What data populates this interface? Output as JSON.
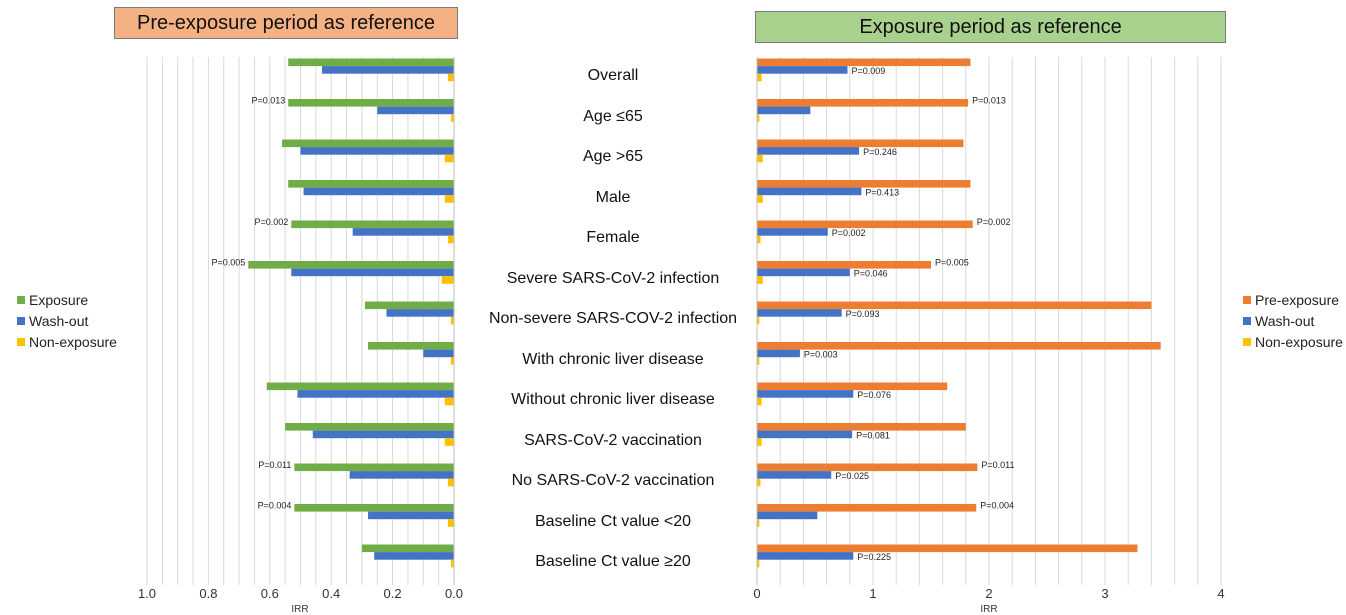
{
  "left_title": "Pre-exposure period as reference",
  "right_title": "Exposure period as reference",
  "colors": {
    "green": "#70ad47",
    "blue": "#4472c4",
    "yellow": "#ffc000",
    "orange": "#ed7d31",
    "grid": "#d9d9d9"
  },
  "left_legend": [
    "Exposure",
    "Wash-out",
    "Non-exposure"
  ],
  "right_legend": [
    "Pre-exposure",
    "Wash-out",
    "Non-exposure"
  ],
  "chart_data": [
    {
      "type": "bar",
      "orientation": "horizontal",
      "title": "Pre-exposure period as reference",
      "xlabel": "IRR",
      "xlim": [
        0,
        1.0
      ],
      "xticks": [
        "0.0",
        "0.2",
        "0.4",
        "0.6",
        "0.8",
        "1.0"
      ],
      "direction": "reversed",
      "categories": [
        "Overall",
        "Age ≤65",
        "Age >65",
        "Male",
        "Female",
        "Severe SARS-CoV-2 infection",
        "Non-severe SARS-COV-2 infection",
        "With chronic liver disease",
        "Without chronic liver disease",
        "SARS-CoV-2 vaccination",
        "No SARS-CoV-2 vaccination",
        "Baseline Ct value <20",
        "Baseline Ct value ≥20"
      ],
      "series": [
        {
          "name": "Exposure",
          "color": "#70ad47",
          "values": [
            0.54,
            0.54,
            0.56,
            0.54,
            0.53,
            0.67,
            0.29,
            0.28,
            0.61,
            0.55,
            0.52,
            0.52,
            0.3
          ]
        },
        {
          "name": "Wash-out",
          "color": "#4472c4",
          "values": [
            0.43,
            0.25,
            0.5,
            0.49,
            0.33,
            0.53,
            0.22,
            0.1,
            0.51,
            0.46,
            0.34,
            0.28,
            0.26
          ]
        },
        {
          "name": "Non-exposure",
          "color": "#ffc000",
          "values": [
            0.02,
            0.01,
            0.03,
            0.03,
            0.02,
            0.04,
            0.01,
            0.01,
            0.03,
            0.03,
            0.02,
            0.02,
            0.01
          ]
        }
      ],
      "annotations": [
        {
          "category": "Age ≤65",
          "text": "P=0.013"
        },
        {
          "category": "Female",
          "text": "P=0.002"
        },
        {
          "category": "Severe SARS-CoV-2 infection",
          "text": "P=0.005"
        },
        {
          "category": "No SARS-CoV-2 vaccination",
          "text": "P=0.011"
        },
        {
          "category": "Baseline Ct value <20",
          "text": "P=0.004"
        }
      ]
    },
    {
      "type": "bar",
      "orientation": "horizontal",
      "title": "Exposure period as reference",
      "xlabel": "IRR",
      "xlim": [
        0,
        4
      ],
      "xticks": [
        "0",
        "1",
        "2",
        "3",
        "4"
      ],
      "categories": [
        "Overall",
        "Age ≤65",
        "Age >65",
        "Male",
        "Female",
        "Severe SARS-CoV-2 infection",
        "Non-severe SARS-COV-2 infection",
        "With chronic liver disease",
        "Without chronic liver disease",
        "SARS-CoV-2 vaccination",
        "No SARS-CoV-2 vaccination",
        "Baseline Ct value <20",
        "Baseline Ct value ≥20"
      ],
      "series": [
        {
          "name": "Pre-exposure",
          "color": "#ed7d31",
          "values": [
            1.84,
            1.82,
            1.78,
            1.84,
            1.86,
            1.5,
            3.4,
            3.48,
            1.64,
            1.8,
            1.9,
            1.89,
            3.28
          ]
        },
        {
          "name": "Wash-out",
          "color": "#4472c4",
          "values": [
            0.78,
            0.46,
            0.88,
            0.9,
            0.61,
            0.8,
            0.73,
            0.37,
            0.83,
            0.82,
            0.64,
            0.52,
            0.83
          ]
        },
        {
          "name": "Non-exposure",
          "color": "#ffc000",
          "values": [
            0.04,
            0.02,
            0.05,
            0.05,
            0.03,
            0.05,
            0.02,
            0.02,
            0.04,
            0.04,
            0.03,
            0.02,
            0.02
          ]
        }
      ],
      "annotations": [
        {
          "category": "Overall",
          "series": "Wash-out",
          "text": "P=0.009"
        },
        {
          "category": "Age ≤65",
          "series": "Pre-exposure",
          "text": "P=0.013"
        },
        {
          "category": "Age >65",
          "series": "Wash-out",
          "text": "P=0.246"
        },
        {
          "category": "Male",
          "series": "Wash-out",
          "text": "P=0.413"
        },
        {
          "category": "Female",
          "series": "Pre-exposure",
          "text": "P=0.002"
        },
        {
          "category": "Female",
          "series": "Wash-out",
          "text": "P=0.002"
        },
        {
          "category": "Severe SARS-CoV-2 infection",
          "series": "Pre-exposure",
          "text": "P=0.005"
        },
        {
          "category": "Severe SARS-CoV-2 infection",
          "series": "Wash-out",
          "text": "P=0.046"
        },
        {
          "category": "Non-severe SARS-COV-2 infection",
          "series": "Wash-out",
          "text": "P=0.093"
        },
        {
          "category": "With chronic liver disease",
          "series": "Wash-out",
          "text": "P=0.003"
        },
        {
          "category": "Without chronic liver disease",
          "series": "Wash-out",
          "text": "P=0.076"
        },
        {
          "category": "SARS-CoV-2 vaccination",
          "series": "Wash-out",
          "text": "P=0.081"
        },
        {
          "category": "No SARS-CoV-2 vaccination",
          "series": "Pre-exposure",
          "text": "P=0.011"
        },
        {
          "category": "No SARS-CoV-2 vaccination",
          "series": "Wash-out",
          "text": "P=0.025"
        },
        {
          "category": "Baseline Ct value <20",
          "series": "Pre-exposure",
          "text": "P=0.004"
        },
        {
          "category": "Baseline Ct value ≥20",
          "series": "Wash-out",
          "text": "P=0.225"
        }
      ]
    }
  ]
}
